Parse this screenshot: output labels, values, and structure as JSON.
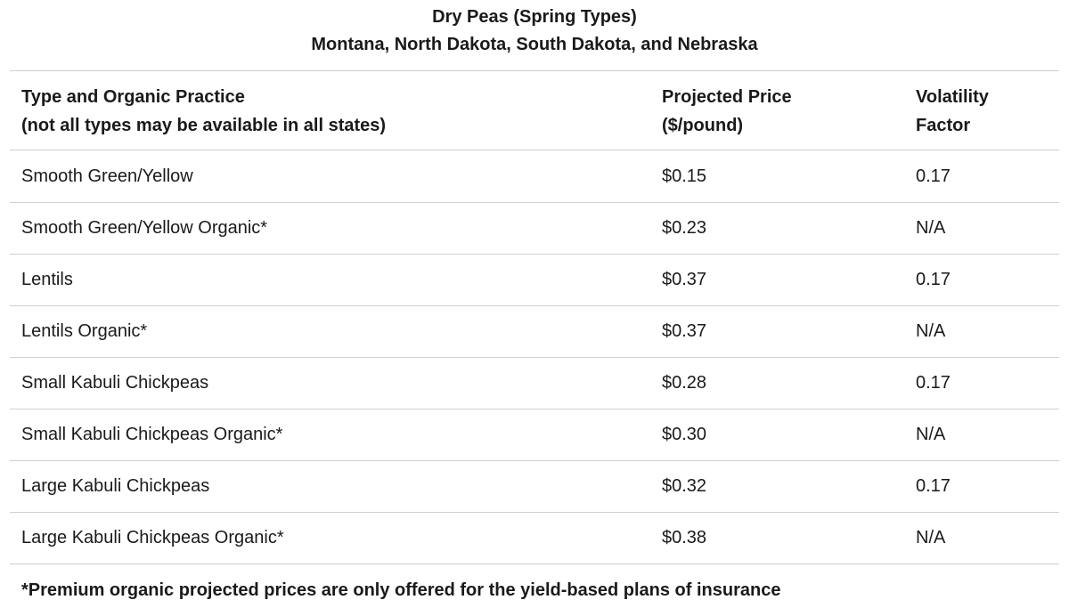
{
  "title": {
    "line1": "Dry Peas (Spring Types)",
    "line2": "Montana, North Dakota, South Dakota, and Nebraska"
  },
  "headers": {
    "type": [
      "Type and Organic Practice",
      "(not all types may be available in all states)"
    ],
    "price": [
      "Projected Price",
      "($/pound)"
    ],
    "volatility": [
      "Volatility",
      "Factor"
    ]
  },
  "rows": [
    {
      "type": "Smooth Green/Yellow",
      "price": "$0.15",
      "volatility": "0.17"
    },
    {
      "type": "Smooth Green/Yellow Organic*",
      "price": "$0.23",
      "volatility": "N/A"
    },
    {
      "type": "Lentils",
      "price": "$0.37",
      "volatility": "0.17"
    },
    {
      "type": "Lentils Organic*",
      "price": "$0.37",
      "volatility": "N/A"
    },
    {
      "type": "Small Kabuli Chickpeas",
      "price": "$0.28",
      "volatility": "0.17"
    },
    {
      "type": "Small Kabuli Chickpeas Organic*",
      "price": "$0.30",
      "volatility": "N/A"
    },
    {
      "type": "Large Kabuli Chickpeas",
      "price": "$0.32",
      "volatility": "0.17"
    },
    {
      "type": "Large Kabuli Chickpeas Organic*",
      "price": "$0.38",
      "volatility": "N/A"
    }
  ],
  "footnote": "*Premium organic projected prices are only offered for the yield-based plans of insurance"
}
